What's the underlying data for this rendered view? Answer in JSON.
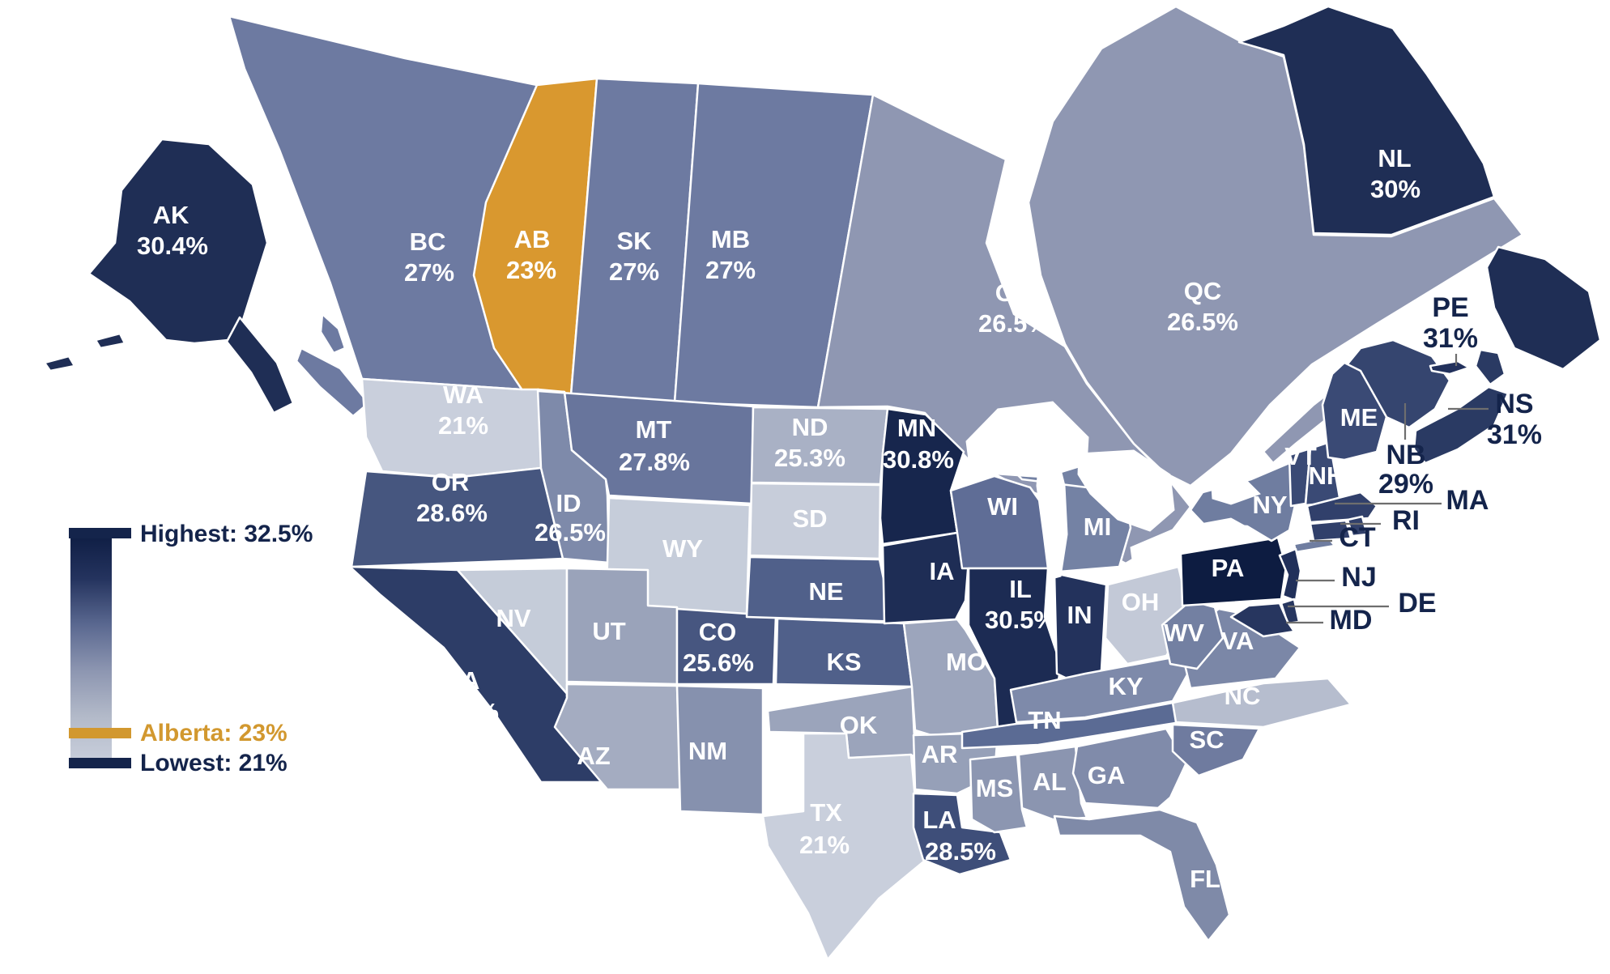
{
  "legend": {
    "highest_label": "Highest: 32.5%",
    "alberta_label": "Alberta: 23%",
    "lowest_label": "Lowest: 21%",
    "navy": "#14244b",
    "orange": "#d2982f",
    "gradient_stops": [
      "#0d1c42",
      "#24335e",
      "#5a6890",
      "#8d96b1",
      "#b3bac9",
      "#c9cfdc"
    ]
  },
  "regions": [
    {
      "id": "BC",
      "label": "BC",
      "value": "27%",
      "fill": "#6d7aa1"
    },
    {
      "id": "AB",
      "label": "AB",
      "value": "23%",
      "fill": "#d9982f"
    },
    {
      "id": "SK",
      "label": "SK",
      "value": "27%",
      "fill": "#6d7aa1"
    },
    {
      "id": "MB",
      "label": "MB",
      "value": "27%",
      "fill": "#6d7aa1"
    },
    {
      "id": "ON",
      "label": "ON",
      "value": "26.5%",
      "fill": "#8f97b2"
    },
    {
      "id": "QC",
      "label": "QC",
      "value": "26.5%",
      "fill": "#8f97b2"
    },
    {
      "id": "NL",
      "label": "NL",
      "value": "30%",
      "fill": "#1f2e55"
    },
    {
      "id": "NB",
      "label": "NB",
      "value": "29%",
      "fill": "#35456f"
    },
    {
      "id": "PE",
      "label": "PE",
      "value": "31%",
      "fill": "#22315c"
    },
    {
      "id": "NS",
      "label": "NS",
      "value": "31%",
      "fill": "#2a3a63"
    },
    {
      "id": "AK",
      "label": "AK",
      "value": "30.4%",
      "fill": "#1f2e55"
    },
    {
      "id": "WA",
      "label": "WA",
      "value": "21%",
      "fill": "#c9cfdc"
    },
    {
      "id": "OR",
      "label": "OR",
      "value": "28.6%",
      "fill": "#46567f"
    },
    {
      "id": "CA",
      "label": "CA",
      "value": "29.8%",
      "fill": "#2d3d67"
    },
    {
      "id": "ID",
      "label": "ID",
      "value": "26.5%",
      "fill": "#7e8aaa"
    },
    {
      "id": "NV",
      "label": "NV",
      "value": "",
      "fill": "#c5ccd9"
    },
    {
      "id": "MT",
      "label": "MT",
      "value": "27.8%",
      "fill": "#68759c"
    },
    {
      "id": "WY",
      "label": "WY",
      "value": "",
      "fill": "#c6cdda"
    },
    {
      "id": "UT",
      "label": "UT",
      "value": "",
      "fill": "#9aa3ba"
    },
    {
      "id": "CO",
      "label": "CO",
      "value": "25.6%",
      "fill": "#475680"
    },
    {
      "id": "AZ",
      "label": "AZ",
      "value": "",
      "fill": "#a4acc1"
    },
    {
      "id": "NM",
      "label": "NM",
      "value": "",
      "fill": "#8691ae"
    },
    {
      "id": "ND",
      "label": "ND",
      "value": "25.3%",
      "fill": "#a9b1c5"
    },
    {
      "id": "SD",
      "label": "SD",
      "value": "",
      "fill": "#c7cdda"
    },
    {
      "id": "NE",
      "label": "NE",
      "value": "",
      "fill": "#50608a"
    },
    {
      "id": "KS",
      "label": "KS",
      "value": "",
      "fill": "#50608a"
    },
    {
      "id": "OK",
      "label": "OK",
      "value": "",
      "fill": "#9ba4bb"
    },
    {
      "id": "TX",
      "label": "TX",
      "value": "21%",
      "fill": "#c9cfdc"
    },
    {
      "id": "MN",
      "label": "MN",
      "value": "30.8%",
      "fill": "#17264d"
    },
    {
      "id": "IA",
      "label": "IA",
      "value": "",
      "fill": "#1e2d55"
    },
    {
      "id": "MO",
      "label": "MO",
      "value": "",
      "fill": "#9ca5bc"
    },
    {
      "id": "AR",
      "label": "AR",
      "value": "",
      "fill": "#96a0b8"
    },
    {
      "id": "LA",
      "label": "LA",
      "value": "28.5%",
      "fill": "#3e4e79"
    },
    {
      "id": "WI",
      "label": "WI",
      "value": "",
      "fill": "#5f6d96"
    },
    {
      "id": "IL",
      "label": "IL",
      "value": "30.5%",
      "fill": "#1c2b53"
    },
    {
      "id": "MI",
      "label": "MI",
      "value": "",
      "fill": "#7482a4"
    },
    {
      "id": "IN",
      "label": "IN",
      "value": "",
      "fill": "#23325c"
    },
    {
      "id": "OH",
      "label": "OH",
      "value": "",
      "fill": "#c3c9d7"
    },
    {
      "id": "KY",
      "label": "KY",
      "value": "",
      "fill": "#7e8aaa"
    },
    {
      "id": "TN",
      "label": "TN",
      "value": "",
      "fill": "#5b6b94"
    },
    {
      "id": "MS",
      "label": "MS",
      "value": "",
      "fill": "#8c96b1"
    },
    {
      "id": "AL",
      "label": "AL",
      "value": "",
      "fill": "#8b95b0"
    },
    {
      "id": "GA",
      "label": "GA",
      "value": "",
      "fill": "#808baa"
    },
    {
      "id": "FL",
      "label": "FL",
      "value": "",
      "fill": "#7f8aa8"
    },
    {
      "id": "SC",
      "label": "SC",
      "value": "",
      "fill": "#6f7b9f"
    },
    {
      "id": "NC",
      "label": "NC",
      "value": "",
      "fill": "#b6bdce"
    },
    {
      "id": "VA",
      "label": "VA",
      "value": "",
      "fill": "#7b87a7"
    },
    {
      "id": "WV",
      "label": "WV",
      "value": "",
      "fill": "#7380a2"
    },
    {
      "id": "PA",
      "label": "PA",
      "value": "",
      "fill": "#0d1c41"
    },
    {
      "id": "NY",
      "label": "NY",
      "value": "",
      "fill": "#6f7da0"
    },
    {
      "id": "NJ",
      "label": "NJ",
      "value": "",
      "fill": "#21305a"
    },
    {
      "id": "DE",
      "label": "DE",
      "value": "",
      "fill": "#27365f"
    },
    {
      "id": "MD",
      "label": "MD",
      "value": "",
      "fill": "#27365f"
    },
    {
      "id": "VT",
      "label": "VT",
      "value": "",
      "fill": "#3a4a75"
    },
    {
      "id": "NH",
      "label": "NH",
      "value": "",
      "fill": "#3a4a75"
    },
    {
      "id": "MA",
      "label": "MA",
      "value": "",
      "fill": "#31406b"
    },
    {
      "id": "RI",
      "label": "RI",
      "value": "",
      "fill": "#31406b"
    },
    {
      "id": "CT",
      "label": "CT",
      "value": "",
      "fill": "#31406b"
    },
    {
      "id": "ME",
      "label": "ME",
      "value": "",
      "fill": "#3a4a75"
    }
  ]
}
